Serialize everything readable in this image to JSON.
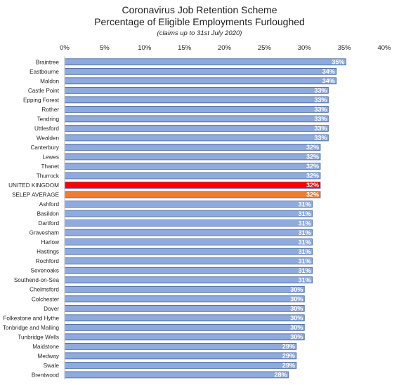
{
  "chart_data": {
    "type": "bar",
    "orientation": "horizontal",
    "title": "Coronavirus Job Retention Scheme",
    "subtitle": "Percentage of Eligible Employments Furloughed",
    "note": "(claims up to 31st July 2020)",
    "xlim": [
      0,
      40
    ],
    "xticks": [
      "0%",
      "5%",
      "10%",
      "15%",
      "20%",
      "25%",
      "30%",
      "35%",
      "40%"
    ],
    "xtick_values": [
      0,
      5,
      10,
      15,
      20,
      25,
      30,
      35,
      40
    ],
    "grid": false,
    "legend": "none",
    "categories": [
      "Braintree",
      "Eastbourne",
      "Maldon",
      "Castle Point",
      "Epping Forest",
      "Rother",
      "Tendring",
      "Uttlesford",
      "Wealden",
      "Canterbury",
      "Lewes",
      "Thanet",
      "Thurrock",
      "UNITED KINGDOM",
      "SELEP AVERAGE",
      "Ashford",
      "Basildon",
      "Dartford",
      "Gravesham",
      "Harlow",
      "Hastings",
      "Rochford",
      "Sevenoaks",
      "Southend-on-Sea",
      "Chelmsford",
      "Colchester",
      "Dover",
      "Folkestone and Hythe",
      "Tonbridge and Malling",
      "Tunbridge Wells",
      "Maidstone",
      "Medway",
      "Swale",
      "Brentwood"
    ],
    "values": [
      35.2,
      34.0,
      34.0,
      33.0,
      33.0,
      33.0,
      33.0,
      33.0,
      33.0,
      32.0,
      32.0,
      32.0,
      32.0,
      32.0,
      32.0,
      31.0,
      31.0,
      31.0,
      31.0,
      31.0,
      31.0,
      31.0,
      31.0,
      31.0,
      30.0,
      30.0,
      30.0,
      30.0,
      30.0,
      30.0,
      29.0,
      29.0,
      29.0,
      28.0
    ],
    "data_labels": [
      "35%",
      "34%",
      "34%",
      "33%",
      "33%",
      "33%",
      "33%",
      "33%",
      "33%",
      "32%",
      "32%",
      "32%",
      "32%",
      "32%",
      "32%",
      "31%",
      "31%",
      "31%",
      "31%",
      "31%",
      "31%",
      "31%",
      "31%",
      "31%",
      "30%",
      "30%",
      "30%",
      "30%",
      "30%",
      "30%",
      "29%",
      "29%",
      "29%",
      "28%"
    ],
    "colors": {
      "default": "#8FAADC",
      "edge": "#2F5597",
      "highlight": {
        "UNITED KINGDOM": "#FF0000",
        "SELEP AVERAGE": "#ED7D31"
      }
    }
  }
}
